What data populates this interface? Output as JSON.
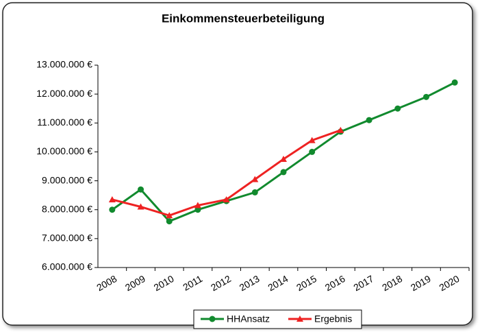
{
  "chart_data": {
    "type": "line",
    "title": "Einkommensteuerbeteiligung",
    "categories": [
      "2008",
      "2009",
      "2010",
      "2011",
      "2012",
      "2013",
      "2014",
      "2015",
      "2016",
      "2017",
      "2018",
      "2019",
      "2020"
    ],
    "series": [
      {
        "name": "HHAnsatz",
        "color": "#118a2e",
        "marker": "circle",
        "values": [
          8000000,
          8700000,
          7600000,
          8000000,
          8300000,
          8600000,
          9300000,
          10000000,
          10700000,
          11100000,
          11500000,
          11900000,
          12400000
        ]
      },
      {
        "name": "Ergebnis",
        "color": "#ee2222",
        "marker": "triangle",
        "values": [
          8350000,
          8100000,
          7800000,
          8150000,
          8350000,
          9050000,
          9750000,
          10400000,
          10750000,
          null,
          null,
          null,
          null
        ]
      }
    ],
    "ylim": [
      6000000,
      13000000
    ],
    "yticks": [
      {
        "value": 6000000,
        "label": "6.000.000 €"
      },
      {
        "value": 7000000,
        "label": "7.000.000 €"
      },
      {
        "value": 8000000,
        "label": "8.000.000 €"
      },
      {
        "value": 9000000,
        "label": "9.000.000 €"
      },
      {
        "value": 10000000,
        "label": "10.000.000 €"
      },
      {
        "value": 11000000,
        "label": "11.000.000 €"
      },
      {
        "value": 12000000,
        "label": "12.000.000 €"
      },
      {
        "value": 13000000,
        "label": "13.000.000 €"
      }
    ],
    "grid": false,
    "legend": "bottom"
  }
}
